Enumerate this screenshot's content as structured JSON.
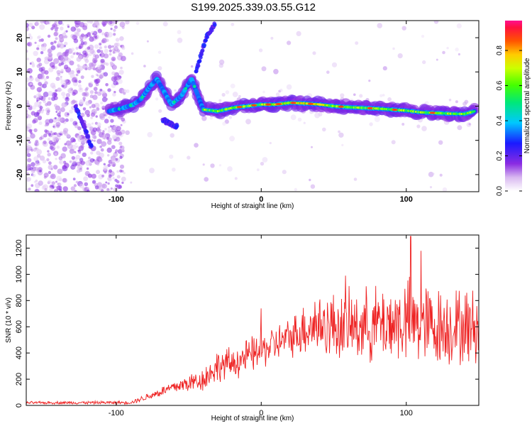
{
  "title": "S199.2025.339.03.55.G12",
  "chart_data": [
    {
      "type": "heatmap",
      "xlabel": "Height of straight line (km)",
      "ylabel": "Frequency (Hz)",
      "xlim": [
        -162,
        150
      ],
      "ylim": [
        -25,
        25
      ],
      "xticks": [
        -100,
        0,
        100
      ],
      "xtick_labels": [
        "-100",
        "0",
        "100"
      ],
      "yticks": [
        -20,
        -10,
        0,
        10,
        20
      ],
      "ytick_labels": [
        "-20",
        "-10",
        "0",
        "10",
        "20"
      ],
      "colorbar": {
        "label": "Normalized spectral amplitude",
        "range": [
          0,
          0.97
        ],
        "ticks": [
          0.0,
          0.2,
          0.4,
          0.6,
          0.8
        ],
        "tick_labels": [
          "0.0",
          "0.2",
          "0.4",
          "0.6",
          "0.8"
        ]
      },
      "ridge_trace": [
        {
          "x": -105,
          "f": -1.5
        },
        {
          "x": -95,
          "f": -0.5
        },
        {
          "x": -88,
          "f": 0.5
        },
        {
          "x": -83,
          "f": 2
        },
        {
          "x": -78,
          "f": 5
        },
        {
          "x": -72,
          "f": 8
        },
        {
          "x": -62,
          "f": 0.5
        },
        {
          "x": -55,
          "f": 3
        },
        {
          "x": -48,
          "f": 8
        },
        {
          "x": -40,
          "f": -1
        },
        {
          "x": -30,
          "f": -1.5
        },
        {
          "x": -20,
          "f": -0.5
        },
        {
          "x": -10,
          "f": 0
        },
        {
          "x": 0,
          "f": 0.5
        },
        {
          "x": 10,
          "f": 0.5
        },
        {
          "x": 20,
          "f": 1
        },
        {
          "x": 30,
          "f": 0.8
        },
        {
          "x": 40,
          "f": 0.5
        },
        {
          "x": 50,
          "f": 0
        },
        {
          "x": 60,
          "f": -0.3
        },
        {
          "x": 70,
          "f": -0.5
        },
        {
          "x": 80,
          "f": -0.7
        },
        {
          "x": 90,
          "f": -1
        },
        {
          "x": 100,
          "f": -1.3
        },
        {
          "x": 110,
          "f": -1.8
        },
        {
          "x": 120,
          "f": -2
        },
        {
          "x": 130,
          "f": -2.2
        },
        {
          "x": 140,
          "f": -2.3
        },
        {
          "x": 147,
          "f": -1.5
        }
      ],
      "secondary_traces": [
        {
          "points": [
            {
              "x": -128,
              "f": 0
            },
            {
              "x": -122,
              "f": -6
            },
            {
              "x": -117,
              "f": -12
            }
          ]
        },
        {
          "points": [
            {
              "x": -68,
              "f": -4
            },
            {
              "x": -58,
              "f": -6
            }
          ]
        },
        {
          "points": [
            {
              "x": -45,
              "f": 10
            },
            {
              "x": -38,
              "f": 20
            },
            {
              "x": -32,
              "f": 24
            }
          ]
        }
      ]
    },
    {
      "type": "line",
      "xlabel": "Height of straight line (km)",
      "ylabel": "SNR (10 * v/v)",
      "xlim": [
        -162,
        150
      ],
      "ylim": [
        0,
        1300
      ],
      "xticks": [
        -100,
        0,
        100
      ],
      "xtick_labels": [
        "-100",
        "0",
        "100"
      ],
      "yticks": [
        0,
        200,
        400,
        600,
        800,
        1000,
        1200
      ],
      "ytick_labels": [
        "0",
        "200",
        "400",
        "600",
        "800",
        "1000",
        "1200"
      ],
      "series": [
        {
          "name": "SNR",
          "color": "#ee2222",
          "envelope": [
            {
              "x": -162,
              "center": 20,
              "spread": 10
            },
            {
              "x": -90,
              "center": 22,
              "spread": 12
            },
            {
              "x": -80,
              "center": 60,
              "spread": 25
            },
            {
              "x": -60,
              "center": 140,
              "spread": 50
            },
            {
              "x": -40,
              "center": 200,
              "spread": 90
            },
            {
              "x": -30,
              "center": 300,
              "spread": 120
            },
            {
              "x": -20,
              "center": 320,
              "spread": 120
            },
            {
              "x": 0,
              "center": 420,
              "spread": 140
            },
            {
              "x": 20,
              "center": 520,
              "spread": 140
            },
            {
              "x": 35,
              "center": 620,
              "spread": 240
            },
            {
              "x": 60,
              "center": 600,
              "spread": 260
            },
            {
              "x": 80,
              "center": 620,
              "spread": 280
            },
            {
              "x": 100,
              "center": 640,
              "spread": 320
            },
            {
              "x": 120,
              "center": 600,
              "spread": 300
            },
            {
              "x": 150,
              "center": 600,
              "spread": 280
            }
          ],
          "peaks": [
            {
              "x": 0,
              "y": 740
            },
            {
              "x": 58,
              "y": 990
            },
            {
              "x": 103,
              "y": 1290
            },
            {
              "x": 110,
              "y": 1180
            }
          ]
        }
      ]
    }
  ]
}
